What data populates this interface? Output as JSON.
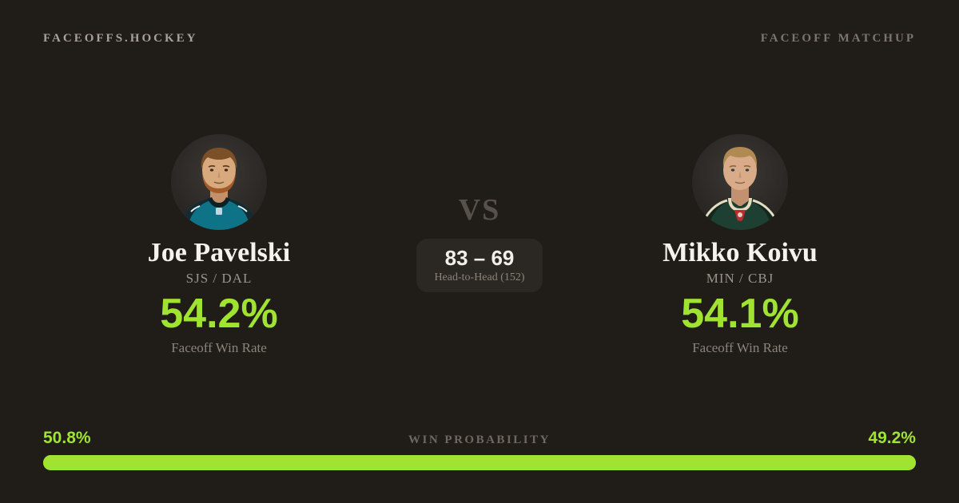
{
  "card": {
    "background": "#201c18",
    "accent": "#a0e330"
  },
  "header": {
    "brand": "FACEOFFS.HOCKEY",
    "page_label": "FACEOFF MATCHUP"
  },
  "players": [
    {
      "name": "Joe Pavelski",
      "teams": "SJS / DAL",
      "faceoff_win_rate": "54.2%",
      "win_rate_label": "Faceoff Win Rate",
      "avatar_style": "--skin:#d9a97e;--skin-shade:#c3906a;--hair:#7c5026;--beard:#a25c2a;--jersey:#0e7386;--yoke:#132a31;--collar:#0d2026;--accent:#e7f2f4"
    },
    {
      "name": "Mikko Koivu",
      "teams": "MIN / CBJ",
      "faceoff_win_rate": "54.1%",
      "win_rate_label": "Faceoff Win Rate",
      "avatar_style": "--skin:#d9ab88;--skin-shade:#c29270;--hair:#b08a52;--jersey:#1d4032;--yoke:#12281f;--stripe:#e6dcc0;--patch:#bf2b2f"
    }
  ],
  "matchup": {
    "vs": "VS",
    "head_to_head_score": "83 – 69",
    "head_to_head_label": "Head-to-Head (152)"
  },
  "win_probability": {
    "title": "WIN PROBABILITY",
    "left_label": "50.8%",
    "right_label": "49.2%",
    "left_value": 50.8,
    "right_value": 49.2,
    "bar_color": "#a0e330"
  }
}
